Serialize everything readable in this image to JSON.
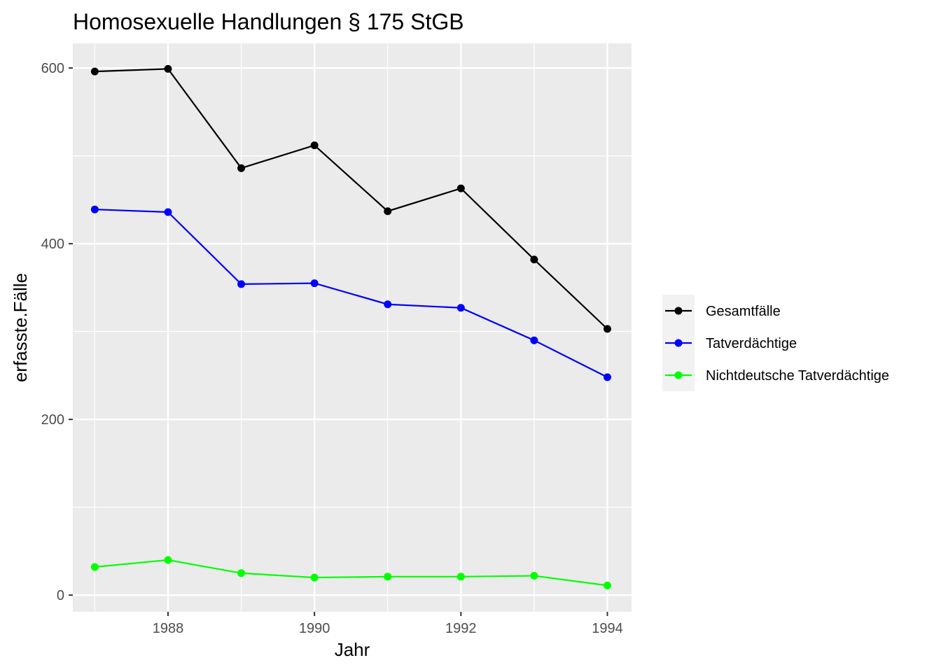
{
  "chart_data": {
    "type": "line",
    "title": "Homosexuelle Handlungen § 175 StGB",
    "xlabel": "Jahr",
    "ylabel": "erfasste.Fälle",
    "x": [
      1987,
      1988,
      1989,
      1990,
      1991,
      1992,
      1993,
      1994
    ],
    "xlim": [
      1986.7,
      1994.33
    ],
    "ylim": [
      -19,
      628
    ],
    "x_ticks": [
      1988,
      1990,
      1992,
      1994
    ],
    "y_ticks": [
      0,
      200,
      400,
      600
    ],
    "grid": true,
    "legend_position": "right",
    "series": [
      {
        "name": "Gesamtfälle",
        "color": "#000000",
        "values": [
          596,
          599,
          486,
          512,
          437,
          463,
          382,
          303
        ]
      },
      {
        "name": "Tatverdächtige",
        "color": "#0000ff",
        "values": [
          439,
          436,
          354,
          355,
          331,
          327,
          290,
          248
        ]
      },
      {
        "name": "Nichtdeutsche Tatverdächtige",
        "color": "#00ff00",
        "values": [
          32,
          40,
          25,
          20,
          21,
          21,
          22,
          11
        ]
      }
    ],
    "panel_background": "#ebebeb",
    "grid_color": "#ffffff"
  }
}
